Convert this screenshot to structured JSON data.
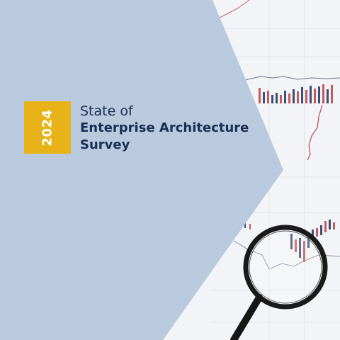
{
  "badge": {
    "year": "2024"
  },
  "title": {
    "line1": "State of",
    "line2": "Enterprise Architecture",
    "line3": "Survey"
  },
  "colors": {
    "panel": "#b9cade",
    "badge": "#e8b318",
    "title_text": "#1a2d57",
    "photo_bg": "#f4f5f8"
  },
  "decor": [
    "stock-chart-photo",
    "magnifying-glass-icon"
  ]
}
